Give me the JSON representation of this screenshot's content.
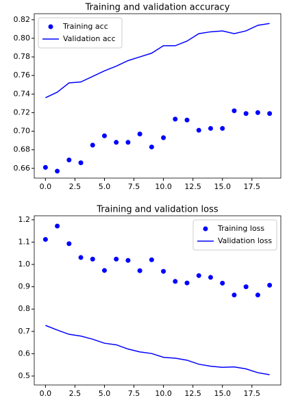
{
  "chart_data": [
    {
      "type": "line",
      "title": "Training and validation accuracy",
      "x": [
        0,
        1,
        2,
        3,
        4,
        5,
        6,
        7,
        8,
        9,
        10,
        11,
        12,
        13,
        14,
        15,
        16,
        17,
        18,
        19
      ],
      "series": [
        {
          "name": "Training acc",
          "color": "#0000ff",
          "mode": "markers",
          "values": [
            0.661,
            0.657,
            0.669,
            0.666,
            0.685,
            0.695,
            0.688,
            0.688,
            0.697,
            0.683,
            0.693,
            0.713,
            0.712,
            0.701,
            0.703,
            0.703,
            0.722,
            0.719,
            0.72,
            0.719
          ]
        },
        {
          "name": "Validation acc",
          "color": "#0000ff",
          "mode": "line",
          "values": [
            0.736,
            0.742,
            0.752,
            0.753,
            0.759,
            0.765,
            0.77,
            0.776,
            0.78,
            0.784,
            0.792,
            0.792,
            0.797,
            0.805,
            0.807,
            0.808,
            0.805,
            0.808,
            0.814,
            0.816
          ]
        }
      ],
      "xlim": [
        -0.95,
        19.95
      ],
      "xticks": [
        {
          "value": 0,
          "label": "0.0"
        },
        {
          "value": 2.5,
          "label": "2.5"
        },
        {
          "value": 5,
          "label": "5.0"
        },
        {
          "value": 7.5,
          "label": "7.5"
        },
        {
          "value": 10,
          "label": "10.0"
        },
        {
          "value": 12.5,
          "label": "12.5"
        },
        {
          "value": 15,
          "label": "15.0"
        },
        {
          "value": 17.5,
          "label": "17.5"
        }
      ],
      "ylim": [
        0.6495,
        0.8265
      ],
      "yticks": [
        0.66,
        0.68,
        {
          "value": 0.7,
          "label": "0.70"
        },
        0.72,
        0.74,
        0.76,
        0.78,
        {
          "value": 0.8,
          "label": "0.80"
        },
        0.82
      ],
      "legend": "upper-left"
    },
    {
      "type": "line",
      "title": "Training and validation loss",
      "x": [
        0,
        1,
        2,
        3,
        4,
        5,
        6,
        7,
        8,
        9,
        10,
        11,
        12,
        13,
        14,
        15,
        16,
        17,
        18,
        19
      ],
      "series": [
        {
          "name": "Training loss",
          "color": "#0000ff",
          "mode": "markers",
          "values": [
            1.112,
            1.172,
            1.093,
            1.031,
            1.024,
            0.973,
            1.024,
            1.018,
            0.972,
            1.021,
            0.969,
            0.924,
            0.917,
            0.95,
            0.942,
            0.916,
            0.863,
            0.9,
            0.863,
            0.907
          ]
        },
        {
          "name": "Validation loss",
          "color": "#0000ff",
          "mode": "line",
          "values": [
            0.727,
            0.706,
            0.687,
            0.679,
            0.665,
            0.647,
            0.64,
            0.621,
            0.608,
            0.601,
            0.584,
            0.58,
            0.571,
            0.553,
            0.544,
            0.539,
            0.541,
            0.532,
            0.515,
            0.506
          ]
        }
      ],
      "xlim": [
        -0.95,
        19.95
      ],
      "xticks": [
        {
          "value": 0,
          "label": "0.0"
        },
        {
          "value": 2.5,
          "label": "2.5"
        },
        {
          "value": 5,
          "label": "5.0"
        },
        {
          "value": 7.5,
          "label": "7.5"
        },
        {
          "value": 10,
          "label": "10.0"
        },
        {
          "value": 12.5,
          "label": "12.5"
        },
        {
          "value": 15,
          "label": "15.0"
        },
        {
          "value": 17.5,
          "label": "17.5"
        }
      ],
      "ylim": [
        0.46,
        1.218
      ],
      "yticks": [
        0.5,
        0.6,
        0.7,
        0.8,
        0.9,
        {
          "value": 1.0,
          "label": "1.0"
        },
        1.1,
        1.2
      ],
      "legend": "upper-right"
    }
  ]
}
